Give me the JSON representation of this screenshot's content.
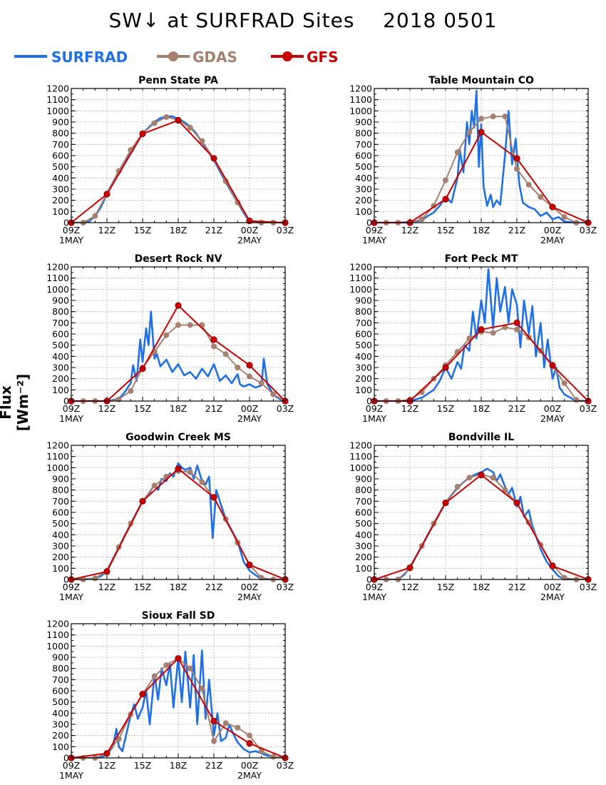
{
  "title": "SW↓ at SURFRAD Sites    2018 0501",
  "ylabel": "Flux [Wm⁻²]",
  "colors": {
    "SURFRAD": "#1f6fe6",
    "GDAS": "#a5806e",
    "GFS": "#c80000"
  },
  "legend": [
    {
      "name": "SURFRAD",
      "marker": "none"
    },
    {
      "name": "GDAS",
      "marker": "circle"
    },
    {
      "name": "GFS",
      "marker": "circle"
    }
  ],
  "axes": {
    "x_ticks": [
      9,
      12,
      15,
      18,
      21,
      24,
      27
    ],
    "x_tick_labels": [
      "09Z",
      "12Z",
      "15Z",
      "18Z",
      "21Z",
      "00Z",
      "03Z"
    ],
    "x_sublabels": [
      {
        "x": 9,
        "text": "1MAY"
      },
      {
        "x": 24,
        "text": "2MAY"
      }
    ],
    "y_ticks": [
      0,
      100,
      200,
      300,
      400,
      500,
      600,
      700,
      800,
      900,
      1000,
      1100,
      1200
    ],
    "xlim": [
      9,
      27
    ],
    "ylim": [
      0,
      1200
    ],
    "grid": true
  },
  "chart_data": [
    {
      "type": "line",
      "title": "Penn State PA",
      "series": [
        {
          "name": "SURFRAD",
          "x": [
            9,
            10,
            10.5,
            11,
            11.5,
            12,
            13,
            14,
            15,
            16,
            16.5,
            17,
            17.5,
            18,
            18.5,
            19,
            19.5,
            20,
            21,
            22,
            23,
            23.5,
            24,
            25,
            26,
            27
          ],
          "y": [
            0,
            0,
            10,
            60,
            140,
            260,
            460,
            640,
            800,
            900,
            935,
            950,
            950,
            930,
            900,
            860,
            800,
            720,
            560,
            360,
            180,
            90,
            10,
            0,
            0,
            0
          ]
        },
        {
          "name": "GDAS",
          "x": [
            9,
            10,
            11,
            12,
            13,
            14,
            15,
            16,
            17,
            18,
            19,
            20,
            21,
            22,
            23,
            24,
            25,
            26,
            27
          ],
          "y": [
            0,
            0,
            60,
            260,
            460,
            650,
            800,
            890,
            945,
            920,
            850,
            730,
            570,
            370,
            180,
            20,
            0,
            0,
            0
          ]
        },
        {
          "name": "GFS",
          "x": [
            9,
            12,
            15,
            18,
            21,
            24,
            27
          ],
          "y": [
            0,
            255,
            795,
            915,
            575,
            15,
            0
          ]
        }
      ]
    },
    {
      "type": "line",
      "title": "Table Mountain CO",
      "series": [
        {
          "name": "SURFRAD",
          "x": [
            9,
            11,
            12,
            13,
            13.5,
            14,
            14.5,
            15,
            15.5,
            16,
            16.2,
            16.5,
            16.8,
            17,
            17.2,
            17.4,
            17.6,
            17.8,
            18,
            18.2,
            18.5,
            18.8,
            19,
            19.3,
            19.6,
            20,
            20.3,
            20.6,
            20.9,
            21.2,
            21.5,
            22,
            22.5,
            23,
            23.5,
            24,
            24.5,
            25,
            26,
            27
          ],
          "y": [
            0,
            0,
            5,
            20,
            60,
            90,
            150,
            230,
            180,
            400,
            650,
            450,
            900,
            700,
            1000,
            850,
            1180,
            500,
            880,
            320,
            150,
            250,
            140,
            200,
            160,
            600,
            1000,
            520,
            750,
            350,
            180,
            140,
            120,
            60,
            90,
            30,
            50,
            10,
            0,
            0
          ]
        },
        {
          "name": "GDAS",
          "x": [
            9,
            10,
            11,
            12,
            13,
            14,
            15,
            16,
            17,
            18,
            19,
            20,
            21,
            22,
            23,
            24,
            25,
            26,
            27
          ],
          "y": [
            0,
            0,
            0,
            0,
            30,
            150,
            380,
            630,
            810,
            930,
            950,
            950,
            480,
            340,
            230,
            140,
            50,
            0,
            0
          ]
        },
        {
          "name": "GFS",
          "x": [
            9,
            12,
            15,
            18,
            21,
            24,
            27
          ],
          "y": [
            0,
            0,
            210,
            810,
            575,
            140,
            0
          ]
        }
      ]
    },
    {
      "type": "line",
      "title": "Desert Rock NV",
      "series": [
        {
          "name": "SURFRAD",
          "x": [
            9,
            12,
            13,
            13.5,
            14,
            14.2,
            14.5,
            14.8,
            15,
            15.3,
            15.5,
            15.7,
            16,
            16.2,
            16.5,
            17,
            17.5,
            18,
            18.5,
            19,
            19.5,
            20,
            20.5,
            21,
            21.5,
            22,
            22.5,
            23,
            23.2,
            23.5,
            24,
            24.5,
            25,
            25.2,
            25.5,
            26,
            26.5,
            27
          ],
          "y": [
            0,
            0,
            20,
            80,
            160,
            320,
            180,
            550,
            350,
            650,
            500,
            800,
            380,
            420,
            310,
            370,
            260,
            330,
            230,
            260,
            200,
            290,
            220,
            330,
            180,
            230,
            160,
            240,
            150,
            130,
            150,
            120,
            140,
            380,
            150,
            60,
            20,
            0
          ]
        },
        {
          "name": "GDAS",
          "x": [
            9,
            10,
            11,
            12,
            13,
            14,
            15,
            16,
            17,
            18,
            19,
            20,
            21,
            22,
            23,
            24,
            25,
            26,
            27
          ],
          "y": [
            0,
            0,
            0,
            0,
            15,
            90,
            300,
            440,
            590,
            680,
            680,
            680,
            490,
            420,
            300,
            220,
            160,
            60,
            0
          ]
        },
        {
          "name": "GFS",
          "x": [
            9,
            12,
            15,
            18,
            21,
            24,
            27
          ],
          "y": [
            0,
            0,
            290,
            855,
            550,
            320,
            0
          ]
        }
      ]
    },
    {
      "type": "line",
      "title": "Fort Peck MT",
      "series": [
        {
          "name": "SURFRAD",
          "x": [
            9,
            11,
            12,
            13,
            14,
            14.5,
            15,
            15.5,
            16,
            16.3,
            16.6,
            17,
            17.3,
            17.6,
            18,
            18.3,
            18.6,
            19,
            19.3,
            19.6,
            20,
            20.3,
            20.6,
            21,
            21.3,
            21.6,
            22,
            22.3,
            22.6,
            23,
            23.3,
            23.6,
            24,
            24.3,
            24.6,
            25,
            26,
            27
          ],
          "y": [
            0,
            0,
            0,
            30,
            100,
            180,
            300,
            200,
            350,
            290,
            500,
            450,
            800,
            560,
            900,
            700,
            1180,
            650,
            1100,
            800,
            1020,
            700,
            1000,
            860,
            480,
            900,
            600,
            850,
            400,
            700,
            300,
            550,
            200,
            300,
            120,
            60,
            0,
            0
          ]
        },
        {
          "name": "GDAS",
          "x": [
            9,
            10,
            11,
            12,
            13,
            14,
            15,
            16,
            17,
            18,
            19,
            20,
            21,
            22,
            23,
            24,
            25,
            26,
            27
          ],
          "y": [
            0,
            0,
            0,
            15,
            80,
            200,
            320,
            440,
            560,
            620,
            610,
            660,
            640,
            570,
            450,
            310,
            160,
            10,
            0
          ]
        },
        {
          "name": "GFS",
          "x": [
            9,
            12,
            15,
            18,
            21,
            24,
            27
          ],
          "y": [
            0,
            0,
            300,
            640,
            700,
            320,
            0
          ]
        }
      ]
    },
    {
      "type": "line",
      "title": "Goodwin Creek MS",
      "series": [
        {
          "name": "SURFRAD",
          "x": [
            9,
            10,
            11,
            11.5,
            12,
            13,
            14,
            15,
            15.5,
            16,
            16.3,
            16.6,
            17,
            17.3,
            17.6,
            18,
            18.3,
            18.6,
            19,
            19.3,
            19.6,
            20,
            20.3,
            20.6,
            20.9,
            21.2,
            21.5,
            22,
            23,
            23.5,
            24,
            25,
            26,
            27
          ],
          "y": [
            0,
            0,
            10,
            30,
            80,
            290,
            500,
            700,
            760,
            850,
            800,
            900,
            880,
            950,
            920,
            1040,
            1000,
            980,
            1000,
            900,
            1020,
            880,
            850,
            920,
            370,
            800,
            700,
            540,
            340,
            160,
            80,
            0,
            0,
            0
          ]
        },
        {
          "name": "GDAS",
          "x": [
            9,
            10,
            11,
            12,
            13,
            14,
            15,
            16,
            17,
            18,
            19,
            20,
            21,
            22,
            23,
            24,
            25,
            26,
            27
          ],
          "y": [
            0,
            0,
            10,
            80,
            290,
            500,
            700,
            840,
            920,
            970,
            960,
            870,
            730,
            540,
            330,
            130,
            15,
            0,
            0
          ]
        },
        {
          "name": "GFS",
          "x": [
            9,
            12,
            15,
            18,
            21,
            24,
            27
          ],
          "y": [
            0,
            70,
            700,
            990,
            735,
            130,
            0
          ]
        }
      ]
    },
    {
      "type": "line",
      "title": "Bondville IL",
      "series": [
        {
          "name": "SURFRAD",
          "x": [
            9,
            10,
            11,
            11.5,
            12,
            13,
            14,
            15,
            16,
            16.5,
            17,
            17.5,
            18,
            18.5,
            19,
            19.3,
            19.6,
            20,
            20.3,
            20.6,
            21,
            21.3,
            21.6,
            22,
            22.3,
            23,
            23.5,
            24,
            24.5,
            25,
            26,
            27
          ],
          "y": [
            0,
            0,
            0,
            40,
            110,
            300,
            500,
            690,
            820,
            870,
            910,
            940,
            960,
            990,
            960,
            880,
            940,
            830,
            760,
            820,
            650,
            740,
            560,
            620,
            480,
            270,
            160,
            90,
            30,
            0,
            0,
            0
          ]
        },
        {
          "name": "GDAS",
          "x": [
            9,
            10,
            11,
            12,
            13,
            14,
            15,
            16,
            17,
            18,
            19,
            20,
            21,
            22,
            23,
            24,
            25,
            26,
            27
          ],
          "y": [
            0,
            0,
            0,
            100,
            300,
            500,
            690,
            830,
            910,
            940,
            910,
            800,
            680,
            510,
            310,
            130,
            15,
            0,
            0
          ]
        },
        {
          "name": "GFS",
          "x": [
            9,
            12,
            15,
            18,
            21,
            24,
            27
          ],
          "y": [
            0,
            105,
            685,
            935,
            685,
            120,
            0
          ]
        }
      ]
    },
    {
      "type": "line",
      "title": "Sioux Fall SD",
      "series": [
        {
          "name": "SURFRAD",
          "x": [
            9,
            11,
            11.5,
            12,
            12.5,
            12.8,
            13,
            13.3,
            13.6,
            14,
            14.3,
            14.6,
            15,
            15.3,
            15.6,
            16,
            16.3,
            16.6,
            17,
            17.3,
            17.6,
            18,
            18.3,
            18.6,
            19,
            19.3,
            19.6,
            20,
            20.3,
            20.6,
            21,
            21.3,
            21.6,
            22,
            22.3,
            22.6,
            23,
            23.5,
            24,
            24.5,
            25,
            25.5,
            26,
            27
          ],
          "y": [
            0,
            0,
            5,
            30,
            100,
            260,
            100,
            60,
            200,
            380,
            480,
            350,
            450,
            600,
            300,
            750,
            520,
            800,
            650,
            850,
            450,
            900,
            500,
            950,
            450,
            920,
            300,
            960,
            350,
            700,
            200,
            400,
            150,
            180,
            300,
            220,
            140,
            80,
            50,
            60,
            40,
            20,
            10,
            0
          ]
        },
        {
          "name": "GDAS",
          "x": [
            9,
            10,
            11,
            12,
            13,
            14,
            15,
            16,
            17,
            18,
            19,
            20,
            21,
            22,
            23,
            24,
            25,
            26,
            27
          ],
          "y": [
            0,
            0,
            0,
            40,
            170,
            390,
            570,
            730,
            830,
            890,
            800,
            620,
            150,
            310,
            270,
            200,
            60,
            10,
            0
          ]
        },
        {
          "name": "GFS",
          "x": [
            9,
            12,
            15,
            18,
            21,
            24,
            27
          ],
          "y": [
            0,
            40,
            570,
            890,
            330,
            130,
            0
          ]
        }
      ]
    }
  ]
}
